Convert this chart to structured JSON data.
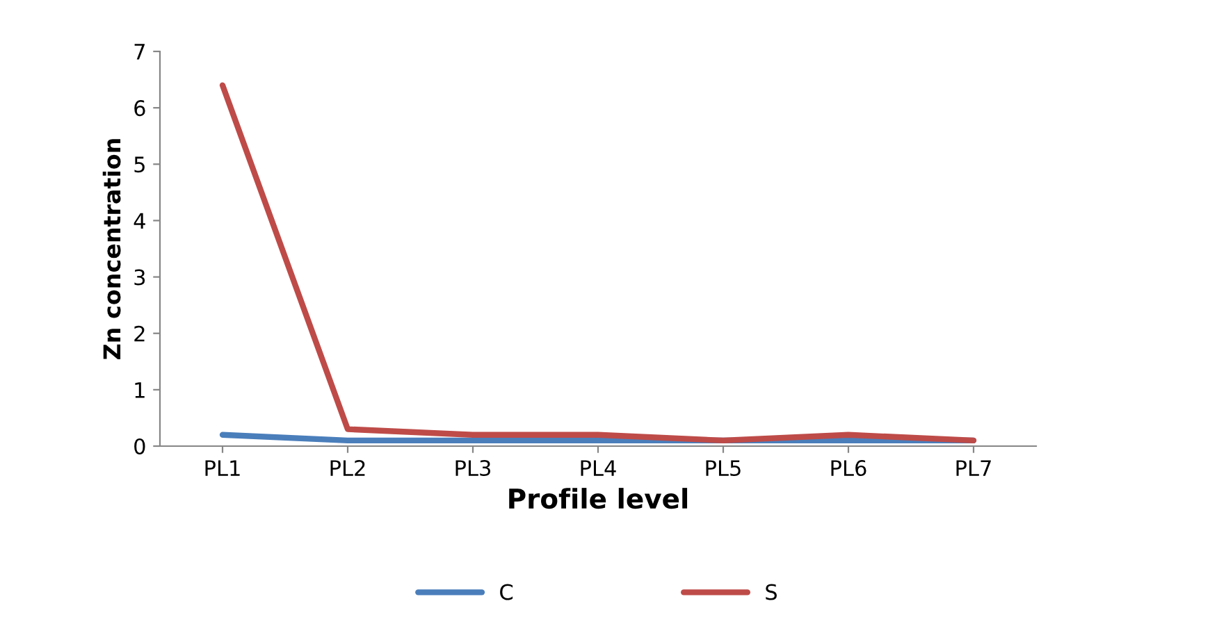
{
  "chart_data": {
    "type": "line",
    "xlabel": "Profile level",
    "ylabel": "Zn concentration",
    "categories": [
      "PL1",
      "PL2",
      "PL3",
      "PL4",
      "PL5",
      "PL6",
      "PL7"
    ],
    "series": [
      {
        "name": "C",
        "color": "#4a7ebb",
        "values": [
          0.2,
          0.1,
          0.1,
          0.1,
          0.1,
          0.1,
          0.1
        ]
      },
      {
        "name": "S",
        "color": "#be4b48",
        "values": [
          6.4,
          0.3,
          0.2,
          0.2,
          0.1,
          0.2,
          0.1
        ]
      }
    ],
    "ylim": [
      0,
      7
    ],
    "yticks": [
      0,
      1,
      2,
      3,
      4,
      5,
      6,
      7
    ],
    "grid": false,
    "legend": "bottom",
    "marker": "none",
    "line_style": "solid"
  }
}
